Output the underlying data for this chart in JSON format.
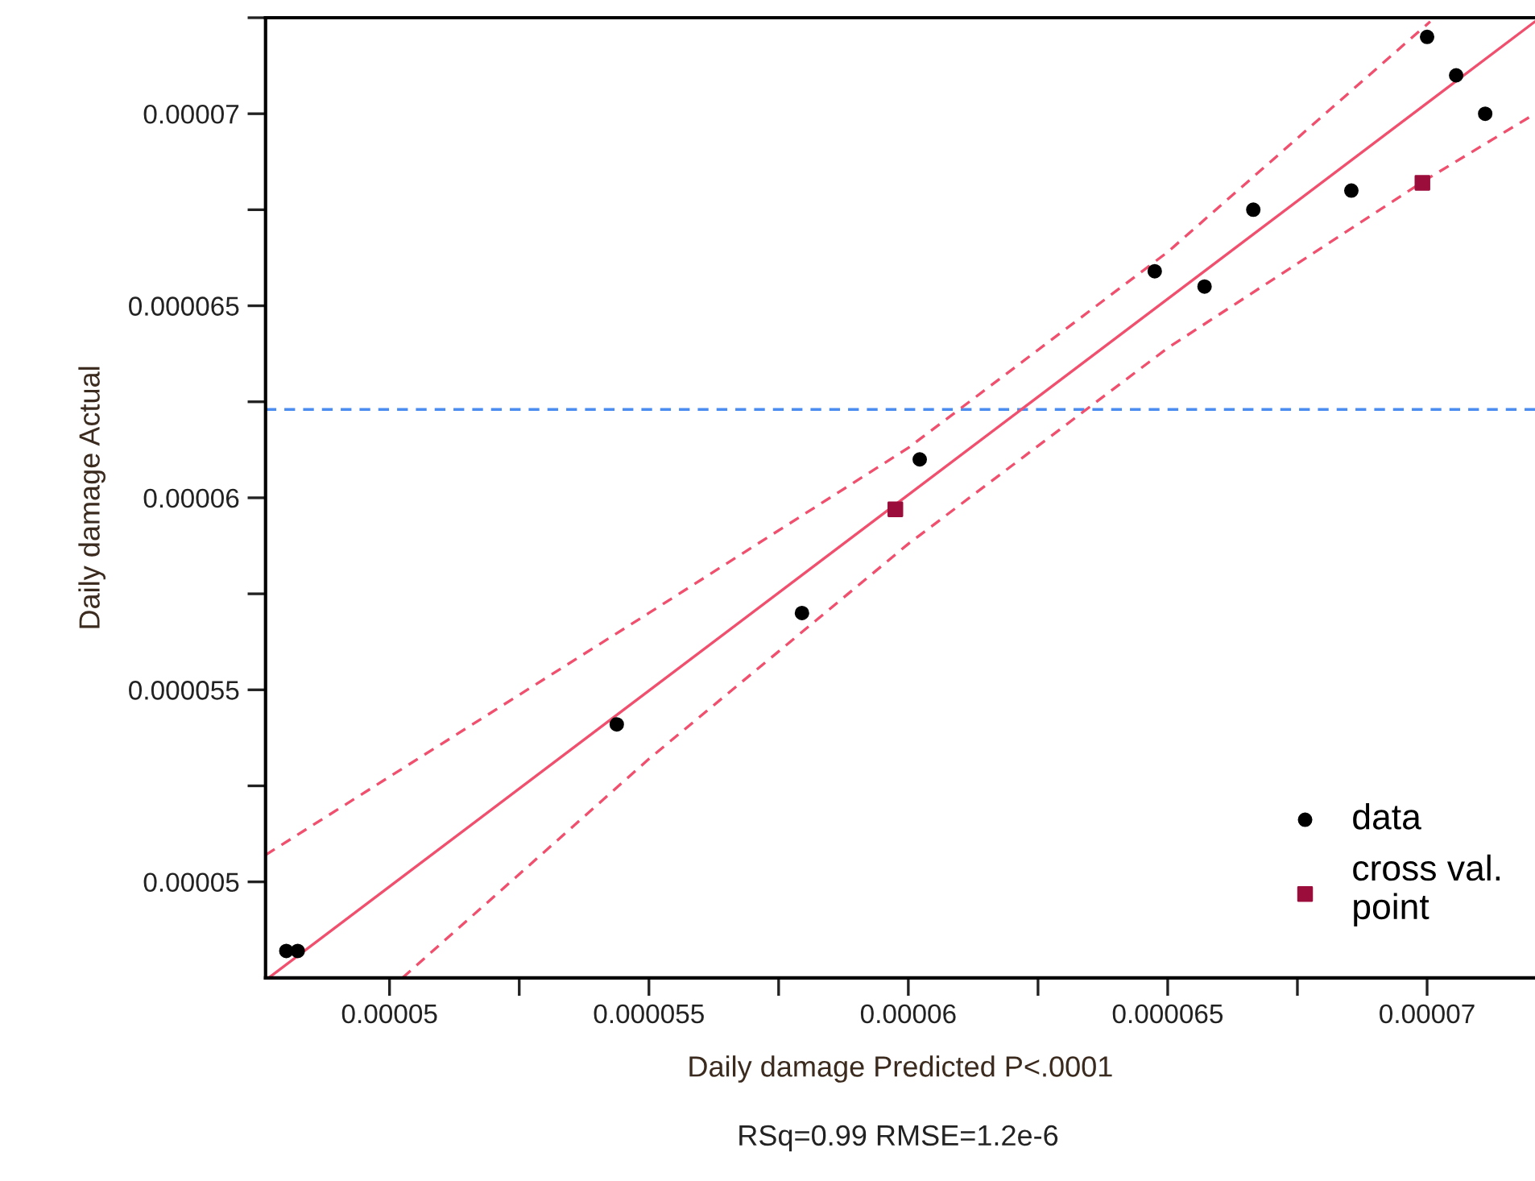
{
  "chart_data": {
    "type": "scatter",
    "xlabel": "Daily damage Predicted P<.0001",
    "ylabel": "Daily damage Actual",
    "annotations": [
      "RSq=0.99 RMSE=1.2e-6"
    ],
    "xlim": [
      4.761e-05,
      7.208e-05
    ],
    "ylim": [
      4.75e-05,
      7.25e-05
    ],
    "xticks": [
      {
        "value": 5e-05,
        "label": "0.00005"
      },
      {
        "value": 5.25e-05,
        "label": null
      },
      {
        "value": 5.5e-05,
        "label": "0.000055"
      },
      {
        "value": 5.75e-05,
        "label": null
      },
      {
        "value": 6e-05,
        "label": "0.00006"
      },
      {
        "value": 6.25e-05,
        "label": null
      },
      {
        "value": 6.5e-05,
        "label": "0.000065"
      },
      {
        "value": 6.75e-05,
        "label": null
      },
      {
        "value": 7e-05,
        "label": "0.00007"
      }
    ],
    "yticks": [
      {
        "value": 5e-05,
        "label": "0.00005"
      },
      {
        "value": 5.25e-05,
        "label": null
      },
      {
        "value": 5.5e-05,
        "label": "0.000055"
      },
      {
        "value": 5.75e-05,
        "label": null
      },
      {
        "value": 6e-05,
        "label": "0.00006"
      },
      {
        "value": 6.25e-05,
        "label": null
      },
      {
        "value": 6.5e-05,
        "label": "0.000065"
      },
      {
        "value": 6.75e-05,
        "label": null
      },
      {
        "value": 7e-05,
        "label": "0.00007"
      },
      {
        "value": 7.25e-05,
        "label": null
      }
    ],
    "grid": false,
    "legend": "bottom right",
    "ref_lines": [
      {
        "axis": "y",
        "value": 6.23e-05,
        "color": "#4a8cf0",
        "line_style": "dashed"
      }
    ],
    "series": [
      {
        "type": "line",
        "color": "#f0506e",
        "line_style": "solid",
        "marker": "none",
        "x": [
          4.767e-05,
          7.208e-05
        ],
        "values": [
          4.75e-05,
          7.24e-05
        ]
      },
      {
        "type": "line",
        "color": "#f0506e",
        "line_style": "dashed",
        "marker": "none",
        "x": [
          4.761e-05,
          5.5e-05,
          6e-05,
          6.5e-05,
          7.006e-05
        ],
        "values": [
          5.07e-05,
          5.7e-05,
          6.13e-05,
          6.64e-05,
          7.24e-05
        ]
      },
      {
        "type": "line",
        "color": "#f0506e",
        "line_style": "dashed",
        "marker": "none",
        "x": [
          5.025e-05,
          5.5e-05,
          6e-05,
          6.5e-05,
          7e-05,
          7.208e-05
        ],
        "values": [
          4.75e-05,
          5.32e-05,
          5.88e-05,
          6.39e-05,
          6.83e-05,
          7e-05
        ]
      },
      {
        "name": "data",
        "color": "#000000",
        "marker": "circle",
        "x": [
          4.801e-05,
          4.823e-05,
          5.438e-05,
          5.795e-05,
          6.022e-05,
          6.475e-05,
          6.571e-05,
          6.665e-05,
          6.854e-05,
          7e-05,
          7.056e-05,
          7.112e-05
        ],
        "values": [
          4.82e-05,
          4.82e-05,
          5.41e-05,
          5.7e-05,
          6.1e-05,
          6.59e-05,
          6.55e-05,
          6.75e-05,
          6.8e-05,
          7.2e-05,
          7.1e-05,
          7e-05
        ]
      },
      {
        "name": "cross val.\npoint",
        "color": "#9b0e3c",
        "marker": "square",
        "x": [
          5.975e-05,
          6.991e-05
        ],
        "values": [
          5.97e-05,
          6.82e-05
        ]
      }
    ]
  }
}
